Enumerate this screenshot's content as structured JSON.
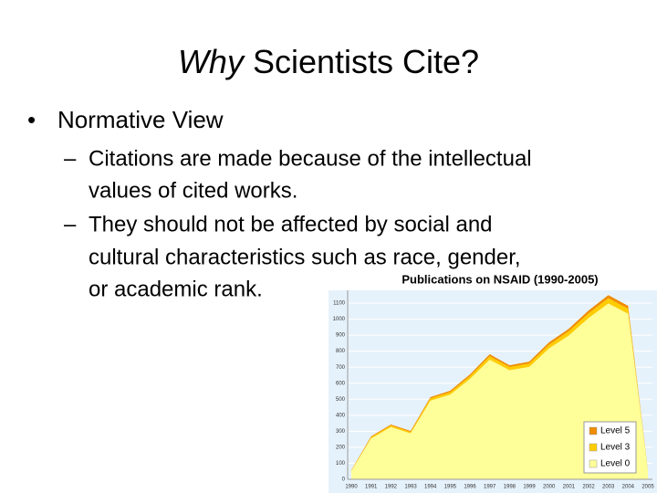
{
  "slide": {
    "title_em": "Why",
    "title_rest": " Scientists Cite?",
    "bullet": "Normative View",
    "sub": [
      [
        "Citations are made because of the intellectual",
        "values of cited works."
      ],
      [
        "They should not be affected by social and",
        "cultural characteristics such as race, gender,",
        "or academic rank."
      ]
    ]
  },
  "chart_data": {
    "type": "area",
    "stacked": true,
    "title": "Publications on NSAID (1990-2005)",
    "categories": [
      "1990",
      "1991",
      "1992",
      "1993",
      "1994",
      "1995",
      "1996",
      "1997",
      "1998",
      "1999",
      "2000",
      "2001",
      "2002",
      "2003",
      "2004",
      "2005"
    ],
    "series": [
      {
        "name": "Level 5",
        "color": "#f08c00",
        "values": [
          2,
          5,
          6,
          6,
          8,
          9,
          10,
          12,
          11,
          12,
          14,
          15,
          17,
          19,
          18,
          2
        ]
      },
      {
        "name": "Level 3",
        "color": "#ffcc00",
        "values": [
          3,
          8,
          10,
          9,
          14,
          15,
          18,
          22,
          20,
          21,
          24,
          27,
          30,
          33,
          31,
          3
        ]
      },
      {
        "name": "Level 0",
        "color": "#ffff99",
        "values": [
          52,
          255,
          326,
          287,
          491,
          529,
          627,
          747,
          681,
          702,
          817,
          898,
          1007,
          1098,
          1034,
          52
        ]
      }
    ],
    "ylim": [
      0,
      1180
    ],
    "yticks": [
      0,
      100,
      200,
      300,
      400,
      500,
      600,
      700,
      800,
      900,
      1000,
      1100
    ],
    "grid": true,
    "legend": "lower-right"
  }
}
